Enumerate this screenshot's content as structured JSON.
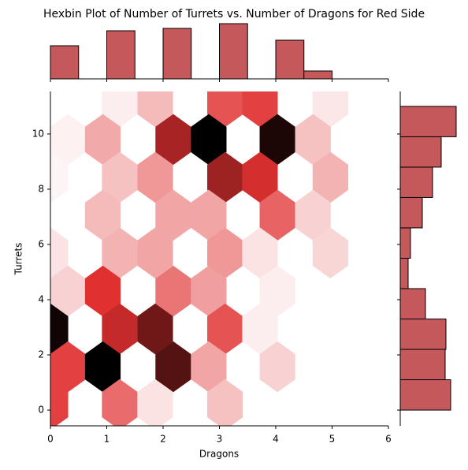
{
  "chart_data": {
    "type": "hexbin",
    "title": "Hexbin Plot of Number of Turrets vs. Number of Dragons for Red Side",
    "x_label": "Dragons",
    "y_label": "Turrets",
    "xlim": [
      0,
      6
    ],
    "ylim": [
      -0.57,
      11.54
    ],
    "xticks": [
      0,
      1,
      2,
      3,
      4,
      5,
      6
    ],
    "yticks": [
      0,
      2,
      4,
      6,
      8,
      10
    ],
    "cmap": [
      "#ffffff",
      "#e03030",
      "#000000"
    ],
    "count_range": [
      0,
      10
    ],
    "hexbins": {
      "x": [
        1.23,
        1.86,
        3.1,
        3.72,
        4.97,
        0.31,
        0.93,
        2.18,
        2.81,
        4.03,
        4.66,
        0,
        1.23,
        1.86,
        3.1,
        3.72,
        4.97,
        0.93,
        2.18,
        2.81,
        4.03,
        4.66,
        0,
        1.23,
        1.86,
        3.1,
        3.72,
        4.97,
        0.31,
        0.93,
        2.18,
        2.81,
        4.03,
        0,
        1.23,
        1.86,
        3.1,
        3.72,
        0.31,
        0.93,
        2.18,
        2.81,
        4.03,
        0,
        1.23,
        1.86,
        3.1
      ],
      "y": [
        11.17,
        11.17,
        11.17,
        11.17,
        11.17,
        9.8,
        9.8,
        9.8,
        9.8,
        9.8,
        9.8,
        8.43,
        8.43,
        8.43,
        8.43,
        8.43,
        8.43,
        7.06,
        7.06,
        7.06,
        7.06,
        7.06,
        5.69,
        5.69,
        5.69,
        5.69,
        5.69,
        5.69,
        4.31,
        4.31,
        4.31,
        4.31,
        4.31,
        2.94,
        2.94,
        2.94,
        2.94,
        2.94,
        1.57,
        1.57,
        1.57,
        1.57,
        1.57,
        0.2,
        0.2,
        0.2,
        0.2
      ],
      "counts": [
        0.5,
        2,
        5,
        5.5,
        0.7,
        0.4,
        2.5,
        7,
        10,
        9.5,
        1.8,
        0.3,
        1.8,
        3,
        7.2,
        6.2,
        2.2,
        2,
        2.6,
        2.6,
        4.5,
        1.3,
        0.8,
        2.2,
        2.6,
        3,
        0.8,
        1.2,
        1.3,
        6,
        4,
        2.8,
        0.5,
        9.7,
        6.5,
        8,
        5,
        0.5,
        5.5,
        10,
        8.5,
        2.6,
        1.3,
        5.5,
        4.3,
        0.8,
        1.8
      ]
    },
    "x_hist": {
      "color": "#c5585a",
      "bins": [
        0,
        0.5,
        1,
        1.5,
        2,
        2.5,
        3,
        3.5,
        4,
        4.5,
        5
      ],
      "counts": [
        42,
        0,
        61,
        0,
        64,
        0,
        70,
        0,
        49,
        10
      ],
      "ylim": [
        0,
        70
      ]
    },
    "y_hist": {
      "color": "#c5585a",
      "bins": [
        0,
        1.1,
        2.2,
        3.3,
        4.4,
        5.5,
        6.6,
        7.7,
        8.8,
        9.9,
        11
      ],
      "counts": [
        64,
        57,
        58,
        32,
        10,
        13,
        28,
        41,
        52,
        71
      ],
      "xlim": [
        0,
        72
      ]
    }
  }
}
